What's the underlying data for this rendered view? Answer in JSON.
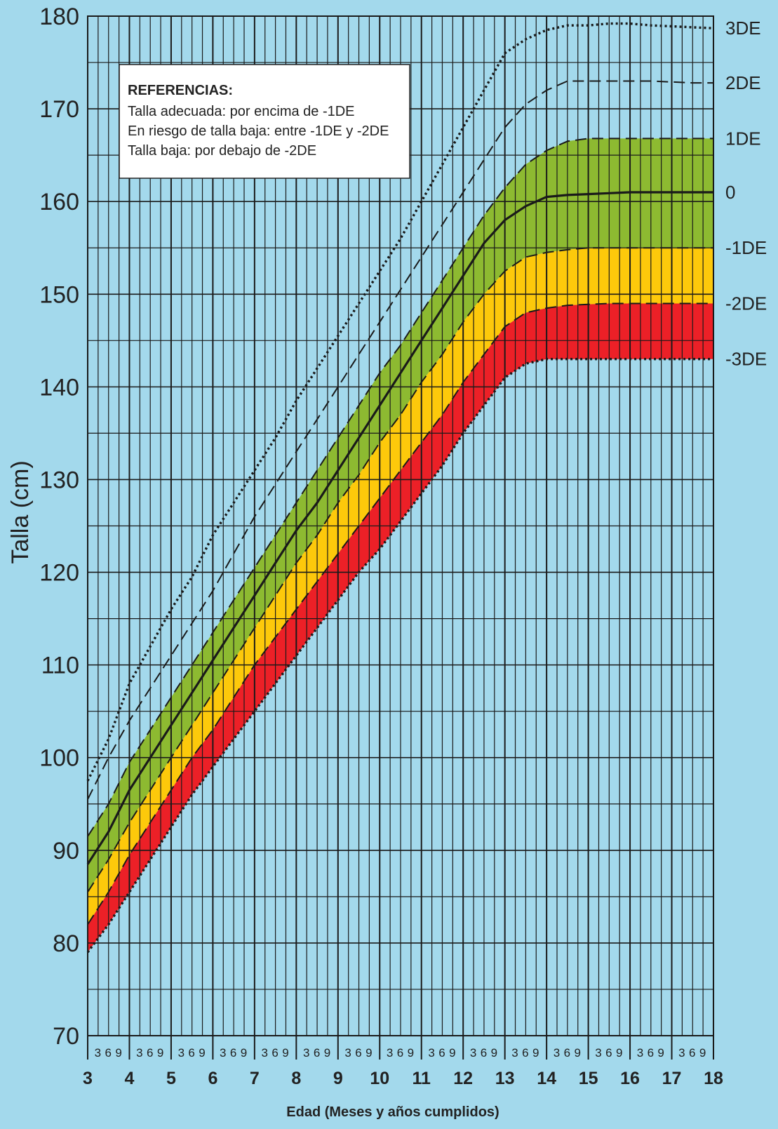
{
  "chart_data": {
    "type": "line",
    "xlabel": "Edad (Meses y años cumplidos)",
    "ylabel": "Talla (cm)",
    "xlim": [
      3,
      18
    ],
    "ylim": [
      70,
      180
    ],
    "x_ticks": [
      "3",
      "4",
      "5",
      "6",
      "7",
      "8",
      "9",
      "10",
      "11",
      "12",
      "13",
      "14",
      "15",
      "16",
      "17",
      "18"
    ],
    "y_ticks": [
      "70",
      "80",
      "90",
      "100",
      "110",
      "120",
      "130",
      "140",
      "150",
      "160",
      "170",
      "180"
    ],
    "month_ticks": [
      "3",
      "6",
      "9"
    ],
    "grid": true,
    "legend": {
      "position": "top-left",
      "title": "REFERENCIAS:",
      "items": [
        "Talla adecuada: por encima de -1DE",
        "En riesgo de talla baja: entre -1DE y -2DE",
        "Talla baja: por debajo de -2DE"
      ]
    },
    "zones": [
      {
        "between": [
          "1DE",
          "-1DE"
        ],
        "color": "#8dba31"
      },
      {
        "between": [
          "-1DE",
          "-2DE"
        ],
        "color": "#fdc90b"
      },
      {
        "between": [
          "-2DE",
          "-3DE"
        ],
        "color": "#ec2027"
      }
    ],
    "x": [
      3,
      3.5,
      4,
      4.5,
      5,
      5.5,
      6,
      6.5,
      7,
      7.5,
      8,
      8.5,
      9,
      9.5,
      10,
      10.5,
      11,
      11.5,
      12,
      12.5,
      13,
      13.5,
      14,
      14.5,
      15,
      15.5,
      16,
      16.5,
      17,
      17.5,
      18
    ],
    "series": [
      {
        "name": "3DE",
        "style": "dotted",
        "values": [
          97.5,
          102,
          108,
          112,
          116,
          119.5,
          124,
          127.5,
          131,
          134.5,
          138.5,
          142,
          145.5,
          149,
          152.5,
          156,
          160,
          164,
          168,
          172,
          176,
          177.5,
          178.5,
          179,
          179,
          179.2,
          179.2,
          179,
          178.9,
          178.8,
          178.7
        ]
      },
      {
        "name": "2DE",
        "style": "dashed",
        "values": [
          95.5,
          100,
          104,
          107.5,
          111,
          114.5,
          118,
          122,
          126,
          129.5,
          133,
          136.5,
          140,
          143.5,
          147,
          150.5,
          154,
          157.5,
          161,
          164.5,
          168,
          170.5,
          172,
          173,
          173,
          173,
          173,
          173,
          172.9,
          172.8,
          172.8
        ]
      },
      {
        "name": "1DE",
        "style": "dashed",
        "values": [
          91.5,
          95,
          99.5,
          103,
          106.5,
          110,
          113.5,
          117,
          120.5,
          124,
          127.5,
          131,
          134.5,
          138,
          141.5,
          144.5,
          148,
          151.5,
          155,
          158.5,
          161.5,
          164,
          165.5,
          166.5,
          166.8,
          166.8,
          166.8,
          166.8,
          166.8,
          166.8,
          166.8
        ]
      },
      {
        "name": "0",
        "style": "solid",
        "values": [
          88.5,
          92,
          96.5,
          100,
          103.5,
          107,
          110.5,
          114,
          117.5,
          121,
          124.5,
          127.5,
          131,
          134.5,
          138,
          141.5,
          145,
          148.5,
          152,
          155.5,
          158,
          159.5,
          160.5,
          160.7,
          160.8,
          160.9,
          161,
          161,
          161,
          161,
          161
        ]
      },
      {
        "name": "-1DE",
        "style": "dashed",
        "values": [
          85.5,
          89,
          93,
          96.5,
          100,
          103.5,
          107,
          110.5,
          114,
          117.5,
          121,
          124,
          127.5,
          130.5,
          134,
          137,
          140.5,
          143.5,
          147,
          150,
          152.5,
          154,
          154.5,
          154.8,
          155,
          155,
          155,
          155,
          155,
          155,
          155
        ]
      },
      {
        "name": "-2DE",
        "style": "dashed",
        "values": [
          82,
          85.5,
          89.5,
          93,
          96.5,
          100,
          103,
          106.5,
          110,
          113,
          116,
          119,
          122,
          125,
          128,
          131,
          134,
          137,
          140.5,
          143.5,
          146.5,
          148,
          148.5,
          148.8,
          148.9,
          149,
          149,
          149,
          149,
          149,
          149
        ]
      },
      {
        "name": "-3DE",
        "style": "dotted",
        "values": [
          79,
          82,
          85.5,
          89,
          92.5,
          96,
          99,
          102,
          105,
          108,
          111,
          114,
          117,
          120,
          122.5,
          125.5,
          128.5,
          131.5,
          135,
          138,
          141,
          142.5,
          143,
          143,
          143,
          143,
          143,
          143,
          143,
          143,
          143
        ]
      }
    ]
  }
}
